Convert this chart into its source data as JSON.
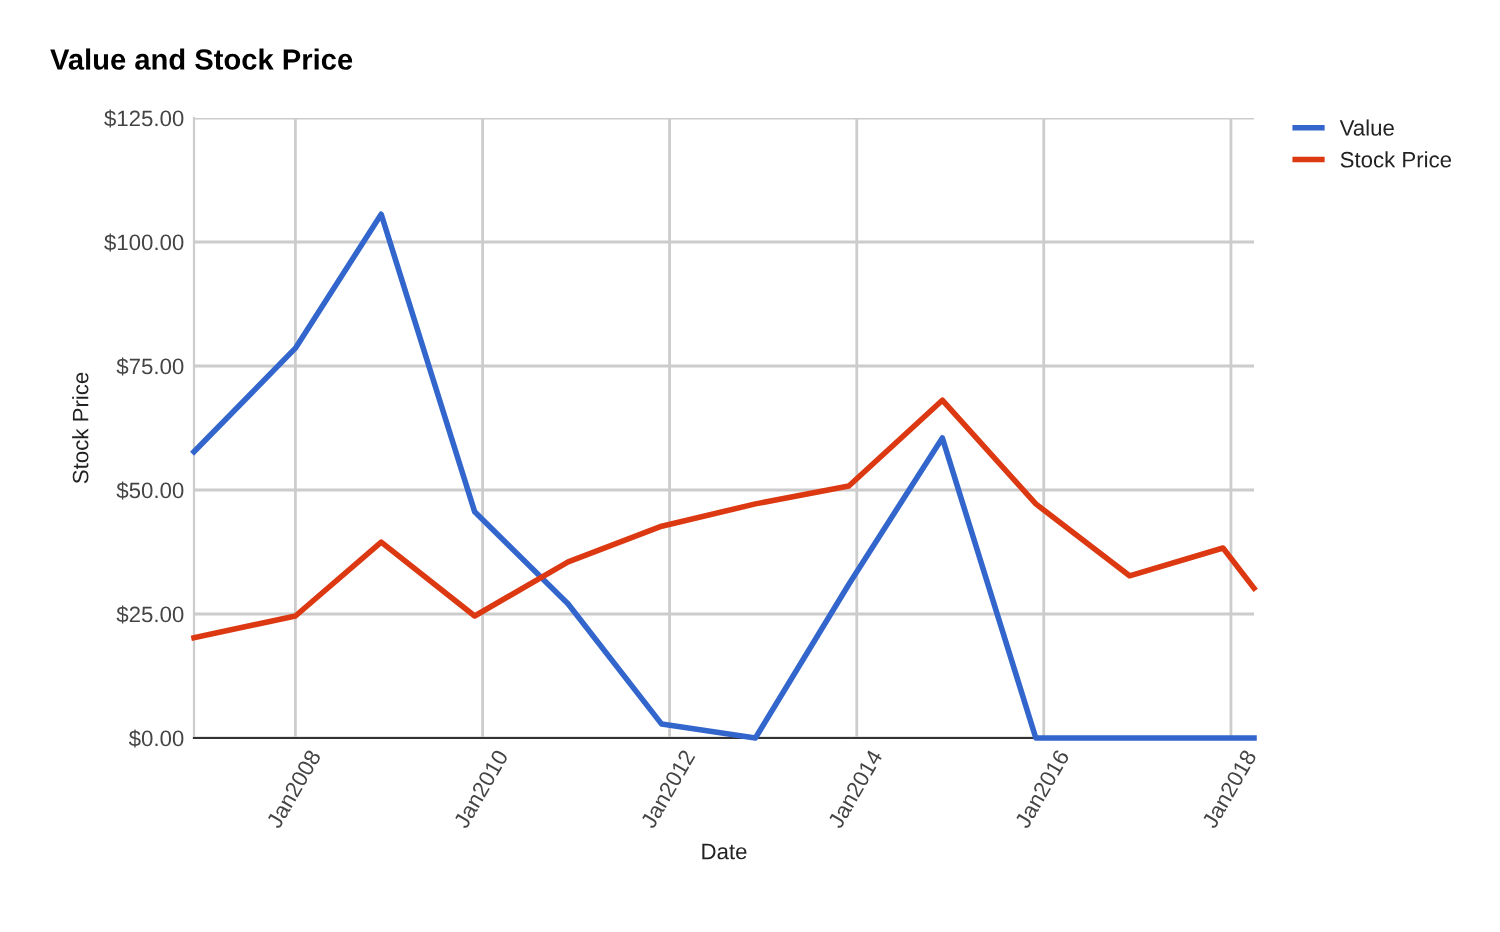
{
  "chart_data": {
    "type": "line",
    "title": "Value and Stock Price",
    "xlabel": "Date",
    "ylabel": "Stock Price",
    "x": [
      "2006-12",
      "2008-01",
      "2008-12",
      "2009-12",
      "2010-12",
      "2011-12",
      "2012-12",
      "2013-12",
      "2014-12",
      "2015-12",
      "2016-12",
      "2017-12",
      "2018-04"
    ],
    "series": [
      {
        "name": "Value",
        "color": "#3366cc",
        "values": [
          57.7,
          78.6,
          105.6,
          45.6,
          27,
          2.8,
          0,
          31,
          60.5,
          0,
          0,
          0,
          0
        ]
      },
      {
        "name": "Stock Price",
        "color": "#dc3912",
        "values": [
          20.2,
          24.6,
          39.5,
          24.6,
          35.5,
          42.7,
          47.2,
          50.8,
          68.1,
          47.2,
          32.7,
          38.3,
          30.2
        ]
      }
    ],
    "xlim": [
      "2006-12",
      "2018-04"
    ],
    "xticks": [
      {
        "value": "2008-01",
        "label": "Jan2008"
      },
      {
        "value": "2010-01",
        "label": "Jan2010"
      },
      {
        "value": "2012-01",
        "label": "Jan2012"
      },
      {
        "value": "2014-01",
        "label": "Jan2014"
      },
      {
        "value": "2016-01",
        "label": "Jan2016"
      },
      {
        "value": "2018-01",
        "label": "Jan2018"
      }
    ],
    "ylim": [
      0,
      125
    ],
    "yticks": [
      {
        "value": 0,
        "label": "$0.00"
      },
      {
        "value": 25,
        "label": "$25.00"
      },
      {
        "value": 50,
        "label": "$50.00"
      },
      {
        "value": 75,
        "label": "$75.00"
      },
      {
        "value": 100,
        "label": "$100.00"
      },
      {
        "value": 125,
        "label": "$125.00"
      }
    ],
    "grid": true,
    "legend": "top right",
    "marker": "none",
    "line_style": "solid"
  }
}
